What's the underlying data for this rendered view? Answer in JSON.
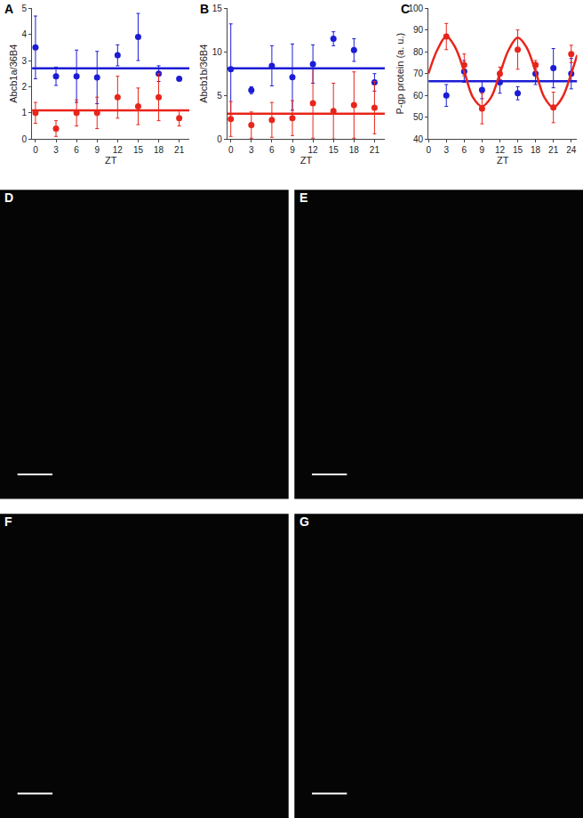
{
  "chart_data": [
    {
      "type": "scatter",
      "panel": "A",
      "x_label": "ZT",
      "y_label": "Abcb1a/36B4",
      "xlim": [
        -0.5,
        22.5
      ],
      "xticks": [
        0,
        3,
        6,
        9,
        12,
        15,
        18,
        21
      ],
      "ylim": [
        0,
        5
      ],
      "yticks": [
        0,
        1,
        2,
        3,
        4,
        5
      ],
      "grid": false,
      "series": [
        {
          "type": "scatter",
          "marker": "circle",
          "color": "#1c1cd6",
          "x": [
            0,
            3,
            6,
            9,
            12,
            15,
            18,
            21
          ],
          "values": [
            3.5,
            2.4,
            2.4,
            2.35,
            3.2,
            3.9,
            2.5,
            2.3
          ],
          "error": [
            1.2,
            0.35,
            1.0,
            1.0,
            0.4,
            0.9,
            0.3,
            0.05
          ]
        },
        {
          "type": "scatter",
          "marker": "circle",
          "color": "#e8251a",
          "x": [
            0,
            3,
            6,
            9,
            12,
            15,
            18,
            21
          ],
          "values": [
            1.0,
            0.4,
            1.0,
            1.0,
            1.6,
            1.25,
            1.6,
            0.8
          ],
          "error": [
            0.4,
            0.3,
            0.5,
            0.6,
            0.8,
            0.7,
            0.9,
            0.3
          ]
        },
        {
          "type": "line",
          "line_style": "solid",
          "color": "#1c1cd6",
          "x": [
            -0.5,
            22.5
          ],
          "values": [
            2.7,
            2.7
          ]
        },
        {
          "type": "line",
          "line_style": "solid",
          "color": "#e8251a",
          "x": [
            -0.5,
            22.5
          ],
          "values": [
            1.1,
            1.1
          ]
        }
      ]
    },
    {
      "type": "scatter",
      "panel": "B",
      "x_label": "ZT",
      "y_label": "Abcb1b/36B4",
      "xlim": [
        -0.5,
        22.5
      ],
      "xticks": [
        0,
        3,
        6,
        9,
        12,
        15,
        18,
        21
      ],
      "ylim": [
        0,
        15
      ],
      "yticks": [
        0,
        5,
        10,
        15
      ],
      "grid": false,
      "series": [
        {
          "type": "scatter",
          "marker": "circle",
          "color": "#1c1cd6",
          "x": [
            0,
            3,
            6,
            9,
            12,
            15,
            18,
            21
          ],
          "values": [
            8.0,
            5.6,
            8.4,
            7.1,
            8.6,
            11.5,
            10.2,
            6.5
          ],
          "error": [
            5.2,
            0.4,
            2.3,
            3.8,
            2.2,
            0.8,
            1.3,
            1.0
          ]
        },
        {
          "type": "scatter",
          "marker": "circle",
          "color": "#e8251a",
          "x": [
            0,
            3,
            6,
            9,
            12,
            15,
            18,
            21
          ],
          "values": [
            2.3,
            1.6,
            2.2,
            2.4,
            4.1,
            3.2,
            3.9,
            3.6
          ],
          "error": [
            2.0,
            1.5,
            2.0,
            2.0,
            4.0,
            3.2,
            3.8,
            3.0
          ]
        },
        {
          "type": "line",
          "line_style": "solid",
          "color": "#1c1cd6",
          "x": [
            -0.5,
            22.5
          ],
          "values": [
            8.1,
            8.1
          ]
        },
        {
          "type": "line",
          "line_style": "solid",
          "color": "#e8251a",
          "x": [
            -0.5,
            22.5
          ],
          "values": [
            2.9,
            2.9
          ]
        }
      ]
    },
    {
      "type": "scatter",
      "panel": "C",
      "x_label": "ZT",
      "y_label": "P-gp protein (a. u.)",
      "xlim": [
        0,
        25
      ],
      "xticks": [
        0,
        3,
        6,
        9,
        12,
        15,
        18,
        21,
        24
      ],
      "ylim": [
        40,
        100
      ],
      "yticks": [
        40,
        50,
        60,
        70,
        80,
        90,
        100
      ],
      "grid": false,
      "series": [
        {
          "type": "scatter",
          "marker": "circle",
          "color": "#1c1cd6",
          "x": [
            3,
            6,
            9,
            12,
            15,
            18,
            21,
            24
          ],
          "values": [
            60,
            71,
            62.5,
            66,
            61,
            70,
            72.5,
            70
          ],
          "error": [
            5,
            5,
            4,
            5,
            3,
            5,
            9,
            7
          ]
        },
        {
          "type": "scatter",
          "marker": "circle",
          "color": "#e8251a",
          "x": [
            3,
            6,
            9,
            12,
            15,
            18,
            21,
            24
          ],
          "values": [
            87,
            74,
            54,
            70,
            81,
            74,
            54.5,
            79
          ],
          "error": [
            6,
            5,
            7,
            3,
            9,
            2,
            7,
            4
          ]
        },
        {
          "type": "line",
          "line_style": "solid",
          "color": "#1c1cd6",
          "x": [
            0,
            25
          ],
          "values": [
            66.5,
            66.5
          ]
        },
        {
          "type": "spline",
          "line_style": "solid",
          "color": "#e8251a",
          "x": [
            0,
            1.5,
            3,
            4.5,
            6,
            7.5,
            9,
            10.5,
            12,
            13.5,
            15,
            16.5,
            18,
            19.5,
            21,
            22.5,
            24,
            25
          ],
          "values": [
            70,
            81,
            87,
            82,
            71,
            59,
            55,
            59,
            70,
            81,
            86.5,
            82,
            71,
            59,
            54.5,
            59,
            70,
            78.5
          ]
        }
      ]
    }
  ],
  "images": [
    {
      "panel": "D"
    },
    {
      "panel": "E"
    },
    {
      "panel": "F"
    },
    {
      "panel": "G"
    }
  ]
}
